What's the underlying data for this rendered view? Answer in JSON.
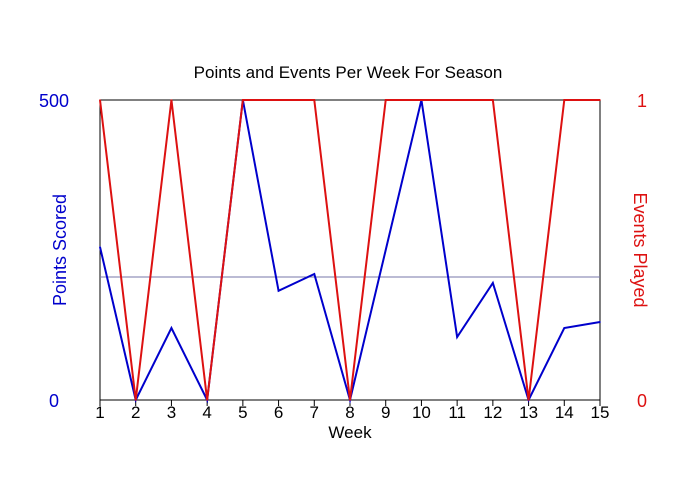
{
  "chart_data": {
    "type": "line",
    "title": "Points and Events Per Week For Season",
    "xlabel": "Week",
    "x": [
      1,
      2,
      3,
      4,
      5,
      6,
      7,
      8,
      9,
      10,
      11,
      12,
      13,
      14,
      15
    ],
    "xlim": [
      1,
      15
    ],
    "y_left": {
      "label": "Points Scored",
      "lim": [
        0,
        500
      ],
      "ticks": [
        "0",
        "500"
      ],
      "color": "#0000cc"
    },
    "y_right": {
      "label": "Events Played",
      "lim": [
        0,
        1
      ],
      "ticks": [
        "0",
        "1"
      ],
      "color": "#dd1111"
    },
    "series": [
      {
        "axis": "left",
        "color": "#0000cc",
        "values": [
          255,
          0,
          120,
          0,
          500,
          182,
          210,
          0,
          250,
          500,
          105,
          195,
          0,
          120,
          130
        ]
      },
      {
        "axis": "right",
        "color": "#dd1111",
        "values": [
          1,
          0,
          1,
          0,
          1,
          1,
          1,
          0,
          1,
          1,
          1,
          1,
          0,
          1,
          1
        ]
      }
    ],
    "reference_line": {
      "axis": "left",
      "value": 205,
      "color": "#7777aa"
    },
    "grid": false,
    "legend": "none"
  }
}
